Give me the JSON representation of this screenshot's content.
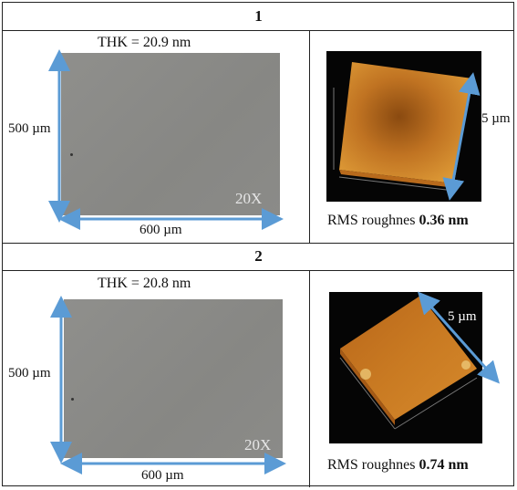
{
  "samples": [
    {
      "title": "1",
      "thickness": "THK = 20.9 nm",
      "magnification": "20X",
      "height_label": "500 µm",
      "width_label": "600 µm",
      "afm_scale": "5 µm",
      "rms_prefix": "RMS roughnes ",
      "rms_value": "0.36 nm"
    },
    {
      "title": "2",
      "thickness": "THK = 20.8 nm",
      "magnification": "20X",
      "height_label": "500 µm",
      "width_label": "600 µm",
      "afm_scale": "5 µm",
      "rms_prefix": "RMS roughnes ",
      "rms_value": "0.74 nm"
    }
  ],
  "colors": {
    "arrow": "#5b9bd5",
    "optical_surface": "#8b8b88",
    "afm_surface": "#c8781e"
  }
}
